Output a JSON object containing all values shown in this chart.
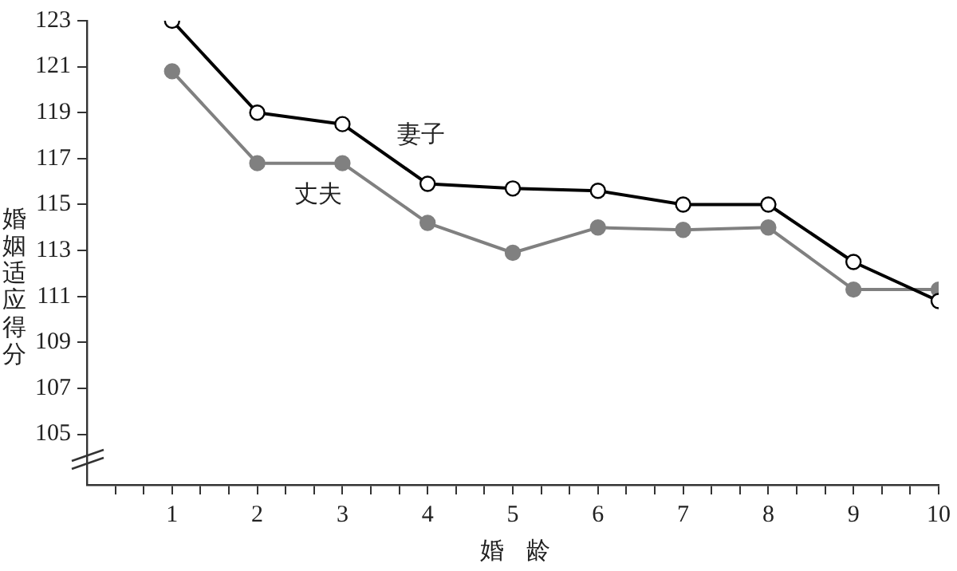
{
  "chart_data": {
    "type": "line",
    "xlabel": "婚龄",
    "ylabel": "婚姻适应得分",
    "x": [
      1,
      2,
      3,
      4,
      5,
      6,
      7,
      8,
      9,
      10
    ],
    "series": [
      {
        "name": "妻子",
        "color": "#000000",
        "values": [
          123,
          119,
          118.5,
          115.9,
          115.7,
          115.6,
          115,
          115,
          112.5,
          110.8
        ]
      },
      {
        "name": "丈夫",
        "color": "#808080",
        "values": [
          120.8,
          116.8,
          116.8,
          114.2,
          112.9,
          114,
          113.9,
          114,
          111.3,
          111.3
        ]
      }
    ],
    "xlim": [
      0,
      10
    ],
    "xticks": [
      {
        "value": 0.333,
        "label": null
      },
      {
        "value": 0.667,
        "label": null
      },
      1,
      {
        "value": 1.333,
        "label": null
      },
      {
        "value": 1.667,
        "label": null
      },
      2,
      {
        "value": 2.333,
        "label": null
      },
      {
        "value": 2.667,
        "label": null
      },
      3,
      {
        "value": 3.333,
        "label": null
      },
      {
        "value": 3.667,
        "label": null
      },
      4,
      {
        "value": 4.333,
        "label": null
      },
      {
        "value": 4.667,
        "label": null
      },
      5,
      {
        "value": 5.333,
        "label": null
      },
      {
        "value": 5.667,
        "label": null
      },
      6,
      {
        "value": 6.333,
        "label": null
      },
      {
        "value": 6.667,
        "label": null
      },
      7,
      {
        "value": 7.333,
        "label": null
      },
      {
        "value": 7.667,
        "label": null
      },
      8,
      {
        "value": 8.333,
        "label": null
      },
      {
        "value": 8.667,
        "label": null
      },
      9,
      {
        "value": 9.333,
        "label": null
      },
      {
        "value": 9.667,
        "label": null
      },
      10
    ],
    "ylim": [
      102.8,
      123
    ],
    "yticks": [
      105,
      107,
      109,
      111,
      113,
      115,
      117,
      119,
      121,
      123
    ],
    "grid": false,
    "legend": false,
    "marker": "circle",
    "line_style": "solid"
  }
}
